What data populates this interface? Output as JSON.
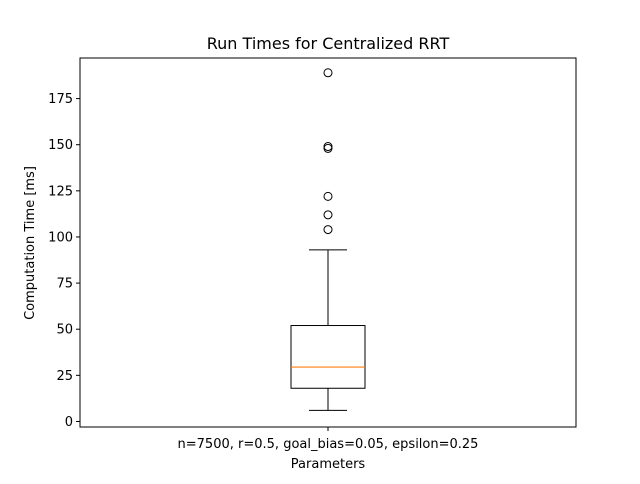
{
  "chart_data": {
    "type": "box",
    "title": "Run Times for Centralized RRT",
    "xlabel": "Parameters",
    "ylabel": "Computation Time [ms]",
    "categories": [
      "n=7500, r=0.5, goal_bias=0.05, epsilon=0.25"
    ],
    "ylim": [
      -3,
      197
    ],
    "yticks": [
      0,
      25,
      50,
      75,
      100,
      125,
      150,
      175
    ],
    "ytick_labels": [
      "0",
      "25",
      "50",
      "75",
      "100",
      "125",
      "150",
      "175"
    ],
    "grid": false,
    "legend": "none",
    "box": {
      "whisker_low": 6,
      "q1": 18,
      "median": 29.5,
      "q3": 52,
      "whisker_high": 93,
      "outliers": [
        104,
        112,
        122,
        148,
        149,
        189
      ]
    },
    "colors": {
      "median": "#ff7f0e",
      "box": "#000000",
      "axes": "#000000"
    }
  }
}
